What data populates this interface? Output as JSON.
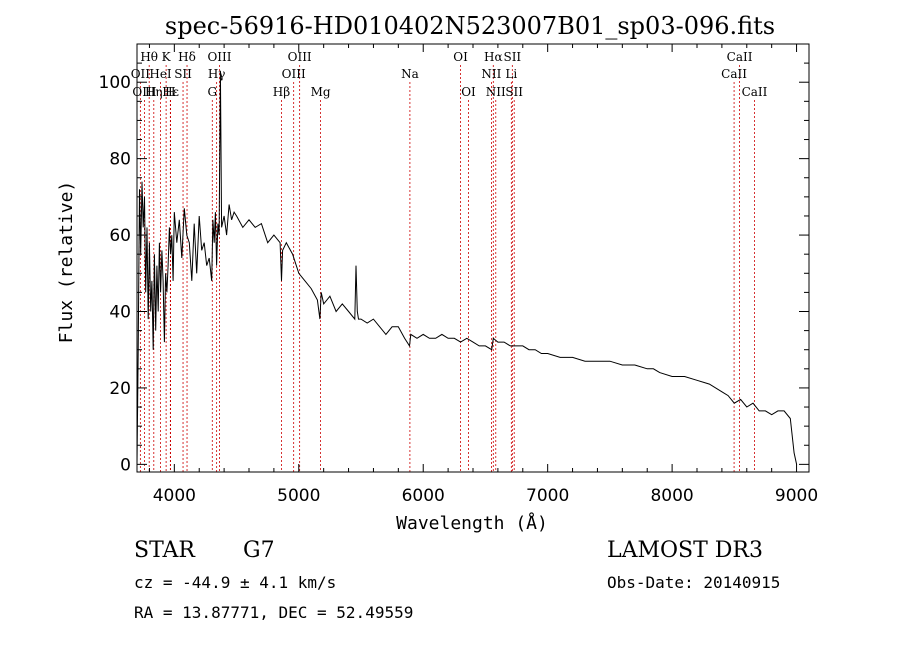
{
  "chart_data": {
    "type": "line",
    "title": "spec-56916-HD010402N523007B01_sp03-096.fits",
    "xlabel": "Wavelength (Å)",
    "ylabel": "Flux (relative)",
    "xlim": [
      3700,
      9100
    ],
    "ylim": [
      -2,
      110
    ],
    "xticks": [
      4000,
      5000,
      6000,
      7000,
      8000,
      9000
    ],
    "yticks": [
      0,
      20,
      40,
      60,
      80,
      100
    ],
    "series": [
      {
        "name": "spectrum",
        "x": [
          3700,
          3710,
          3720,
          3730,
          3740,
          3750,
          3760,
          3770,
          3780,
          3790,
          3800,
          3810,
          3820,
          3830,
          3840,
          3850,
          3860,
          3870,
          3880,
          3890,
          3900,
          3910,
          3920,
          3930,
          3940,
          3950,
          3960,
          3970,
          3980,
          3990,
          4000,
          4020,
          4040,
          4060,
          4080,
          4100,
          4120,
          4140,
          4160,
          4180,
          4200,
          4220,
          4240,
          4260,
          4280,
          4300,
          4310,
          4320,
          4330,
          4340,
          4350,
          4360,
          4370,
          4380,
          4400,
          4420,
          4440,
          4460,
          4480,
          4500,
          4550,
          4600,
          4650,
          4700,
          4750,
          4800,
          4850,
          4861,
          4870,
          4900,
          4950,
          5000,
          5050,
          5100,
          5150,
          5170,
          5180,
          5200,
          5250,
          5300,
          5350,
          5400,
          5450,
          5460,
          5470,
          5480,
          5500,
          5550,
          5600,
          5650,
          5700,
          5750,
          5800,
          5850,
          5890,
          5900,
          5950,
          6000,
          6050,
          6100,
          6150,
          6200,
          6250,
          6300,
          6350,
          6400,
          6450,
          6500,
          6550,
          6563,
          6600,
          6650,
          6700,
          6750,
          6800,
          6850,
          6900,
          6950,
          7000,
          7100,
          7200,
          7300,
          7400,
          7500,
          7600,
          7700,
          7800,
          7850,
          7900,
          8000,
          8100,
          8200,
          8300,
          8400,
          8450,
          8500,
          8550,
          8600,
          8650,
          8700,
          8750,
          8800,
          8850,
          8900,
          8950,
          8980,
          9000
        ],
        "values": [
          0,
          30,
          72,
          55,
          74,
          62,
          70,
          45,
          62,
          38,
          58,
          40,
          48,
          30,
          55,
          35,
          52,
          40,
          58,
          45,
          56,
          48,
          32,
          50,
          45,
          52,
          62,
          55,
          60,
          48,
          66,
          58,
          64,
          54,
          67,
          60,
          58,
          48,
          63,
          50,
          65,
          56,
          58,
          52,
          54,
          48,
          64,
          58,
          66,
          52,
          63,
          60,
          103,
          62,
          65,
          60,
          68,
          64,
          66,
          65,
          62,
          64,
          62,
          63,
          58,
          60,
          58,
          48,
          56,
          58,
          55,
          50,
          48,
          46,
          43,
          38,
          45,
          42,
          44,
          40,
          42,
          40,
          38,
          52,
          40,
          38,
          38,
          37,
          38,
          36,
          34,
          36,
          36,
          33,
          31,
          34,
          33,
          34,
          33,
          33,
          34,
          33,
          33,
          32,
          33,
          32,
          31,
          31,
          30,
          33,
          32,
          32,
          31,
          31,
          31,
          30,
          30,
          29,
          29,
          28,
          28,
          27,
          27,
          27,
          26,
          26,
          25,
          25,
          24,
          23,
          23,
          22,
          21,
          19,
          18,
          16,
          17,
          15,
          16,
          14,
          14,
          13,
          14,
          14,
          12,
          3,
          0
        ]
      }
    ],
    "lines": [
      {
        "name": "Hθ",
        "wl": 3798,
        "row": 1
      },
      {
        "name": "OII",
        "wl": 3727,
        "row": 2
      },
      {
        "name": "OIII",
        "wl": 3760,
        "row": 3
      },
      {
        "name": "Hη",
        "wl": 3835,
        "row": 3
      },
      {
        "name": "HeI",
        "wl": 3889,
        "row": 2
      },
      {
        "name": "Hε",
        "wl": 3970,
        "row": 3
      },
      {
        "name": "K",
        "wl": 3934,
        "row": 1
      },
      {
        "name": "SII",
        "wl": 4070,
        "row": 2
      },
      {
        "name": "H",
        "wl": 3968,
        "row": 3
      },
      {
        "name": "Hδ",
        "wl": 4102,
        "row": 1
      },
      {
        "name": "G",
        "wl": 4305,
        "row": 3
      },
      {
        "name": "Hγ",
        "wl": 4340,
        "row": 2
      },
      {
        "name": "OIII",
        "wl": 4363,
        "row": 1
      },
      {
        "name": "Hβ",
        "wl": 4861,
        "row": 3
      },
      {
        "name": "OIII",
        "wl": 4959,
        "row": 2
      },
      {
        "name": "OIII",
        "wl": 5007,
        "row": 1
      },
      {
        "name": "Mg",
        "wl": 5175,
        "row": 3
      },
      {
        "name": "Na",
        "wl": 5893,
        "row": 2
      },
      {
        "name": "OI",
        "wl": 6300,
        "row": 1
      },
      {
        "name": "OI",
        "wl": 6364,
        "row": 3
      },
      {
        "name": "NII",
        "wl": 6548,
        "row": 2
      },
      {
        "name": "Hα",
        "wl": 6563,
        "row": 1
      },
      {
        "name": "NII",
        "wl": 6583,
        "row": 3
      },
      {
        "name": "SII",
        "wl": 6716,
        "row": 1
      },
      {
        "name": "Li",
        "wl": 6708,
        "row": 2
      },
      {
        "name": "SII",
        "wl": 6731,
        "row": 3
      },
      {
        "name": "CaII",
        "wl": 8498,
        "row": 2
      },
      {
        "name": "CaII",
        "wl": 8542,
        "row": 1
      },
      {
        "name": "CaII",
        "wl": 8662,
        "row": 3
      }
    ]
  },
  "info": {
    "class": "STAR",
    "subclass": "G7",
    "survey": "LAMOST DR3",
    "cz": "cz = -44.9 ± 4.1 km/s",
    "obs_date": "Obs-Date: 20140915",
    "coords": "RA =  13.87771, DEC =  52.49559"
  }
}
